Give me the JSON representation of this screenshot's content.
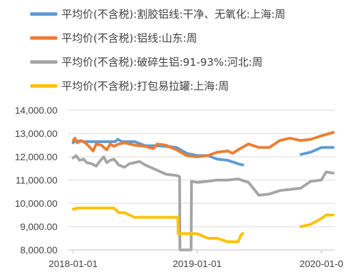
{
  "chart_data": {
    "type": "line",
    "series": [
      {
        "name": "平均价(不含税):割胶铝线:干净、无氧化:上海:周",
        "color": "#5B9BD5",
        "points": [
          [
            "2018-01-01",
            12600
          ],
          [
            "2018-01-08",
            12700
          ],
          [
            "2018-02-01",
            12650
          ],
          [
            "2018-04-01",
            12650
          ],
          [
            "2018-05-05",
            12650
          ],
          [
            "2018-05-12",
            12750
          ],
          [
            "2018-05-25",
            12650
          ],
          [
            "2018-07-01",
            12650
          ],
          [
            "2018-08-01",
            12480
          ],
          [
            "2018-09-01",
            12480
          ],
          [
            "2018-10-01",
            12450
          ],
          [
            "2018-11-01",
            12400
          ],
          [
            "2018-12-01",
            12150
          ],
          [
            "2019-01-01",
            12050
          ],
          [
            "2019-02-01",
            12050
          ],
          [
            "2019-03-01",
            11900
          ],
          [
            "2019-04-01",
            11850
          ],
          [
            "2019-05-01",
            11700
          ],
          [
            "2019-05-15",
            11650
          ],
          [
            "2019-05-16",
            null
          ],
          [
            "2019-11-01",
            null
          ],
          [
            "2019-11-02",
            12100
          ],
          [
            "2019-12-01",
            12200
          ],
          [
            "2020-01-01",
            12400
          ],
          [
            "2020-02-05",
            12400
          ]
        ]
      },
      {
        "name": "平均价(不含税):铝线:山东:周",
        "color": "#ED7D31",
        "points": [
          [
            "2018-01-01",
            12700
          ],
          [
            "2018-01-06",
            12800
          ],
          [
            "2018-01-13",
            12600
          ],
          [
            "2018-01-25",
            12700
          ],
          [
            "2018-02-10",
            12550
          ],
          [
            "2018-03-01",
            12250
          ],
          [
            "2018-03-10",
            12550
          ],
          [
            "2018-03-25",
            12500
          ],
          [
            "2018-04-10",
            12300
          ],
          [
            "2018-04-20",
            12550
          ],
          [
            "2018-05-01",
            12450
          ],
          [
            "2018-05-15",
            12550
          ],
          [
            "2018-06-01",
            12600
          ],
          [
            "2018-07-01",
            12500
          ],
          [
            "2018-08-01",
            12450
          ],
          [
            "2018-08-25",
            12350
          ],
          [
            "2018-09-05",
            12550
          ],
          [
            "2018-10-01",
            12500
          ],
          [
            "2018-11-01",
            12300
          ],
          [
            "2018-12-01",
            12050
          ],
          [
            "2019-01-01",
            12000
          ],
          [
            "2019-02-01",
            12050
          ],
          [
            "2019-03-01",
            12200
          ],
          [
            "2019-04-01",
            12250
          ],
          [
            "2019-04-15",
            12150
          ],
          [
            "2019-05-01",
            12300
          ],
          [
            "2019-06-01",
            12550
          ],
          [
            "2019-07-01",
            12400
          ],
          [
            "2019-08-01",
            12400
          ],
          [
            "2019-09-01",
            12700
          ],
          [
            "2019-10-01",
            12800
          ],
          [
            "2019-11-01",
            12700
          ],
          [
            "2019-12-01",
            12750
          ],
          [
            "2020-01-01",
            12900
          ],
          [
            "2020-02-05",
            13050
          ]
        ]
      },
      {
        "name": "平均价(不含税):破碎生铝:91-93%:河北:周",
        "color": "#A5A5A5",
        "points": [
          [
            "2018-01-01",
            11950
          ],
          [
            "2018-01-10",
            12050
          ],
          [
            "2018-01-20",
            11850
          ],
          [
            "2018-02-01",
            11900
          ],
          [
            "2018-02-10",
            11750
          ],
          [
            "2018-02-25",
            11700
          ],
          [
            "2018-03-10",
            11600
          ],
          [
            "2018-03-20",
            11800
          ],
          [
            "2018-04-01",
            12000
          ],
          [
            "2018-04-10",
            11750
          ],
          [
            "2018-04-20",
            11850
          ],
          [
            "2018-05-01",
            11900
          ],
          [
            "2018-05-15",
            11650
          ],
          [
            "2018-06-01",
            11550
          ],
          [
            "2018-06-15",
            11700
          ],
          [
            "2018-07-01",
            11750
          ],
          [
            "2018-07-15",
            11800
          ],
          [
            "2018-08-01",
            11650
          ],
          [
            "2018-09-01",
            11450
          ],
          [
            "2018-10-01",
            11250
          ],
          [
            "2018-11-01",
            11200
          ],
          [
            "2018-11-10",
            11150
          ],
          [
            "2018-11-11",
            7500
          ],
          [
            "2018-12-14",
            7500
          ],
          [
            "2018-12-15",
            10950
          ],
          [
            "2019-01-01",
            10900
          ],
          [
            "2019-02-01",
            10950
          ],
          [
            "2019-03-01",
            11000
          ],
          [
            "2019-04-01",
            11000
          ],
          [
            "2019-05-01",
            11050
          ],
          [
            "2019-06-01",
            10900
          ],
          [
            "2019-07-01",
            10350
          ],
          [
            "2019-08-01",
            10400
          ],
          [
            "2019-09-01",
            10550
          ],
          [
            "2019-10-01",
            10600
          ],
          [
            "2019-11-01",
            10650
          ],
          [
            "2019-12-01",
            10950
          ],
          [
            "2020-01-01",
            11000
          ],
          [
            "2020-01-15",
            11350
          ],
          [
            "2020-02-05",
            11300
          ]
        ]
      },
      {
        "name": "平均价(不含税):打包易拉罐:上海:周",
        "color": "#FFC000",
        "points": [
          [
            "2018-01-01",
            9750
          ],
          [
            "2018-01-15",
            9800
          ],
          [
            "2018-05-01",
            9800
          ],
          [
            "2018-05-15",
            9600
          ],
          [
            "2018-06-01",
            9600
          ],
          [
            "2018-07-01",
            9400
          ],
          [
            "2018-08-01",
            9400
          ],
          [
            "2018-11-05",
            9400
          ],
          [
            "2018-11-06",
            8700
          ],
          [
            "2019-01-01",
            8700
          ],
          [
            "2019-02-01",
            8500
          ],
          [
            "2019-03-01",
            8500
          ],
          [
            "2019-04-01",
            8350
          ],
          [
            "2019-05-01",
            8350
          ],
          [
            "2019-05-10",
            8650
          ],
          [
            "2019-05-15",
            8700
          ],
          [
            "2019-05-16",
            null
          ],
          [
            "2019-11-01",
            null
          ],
          [
            "2019-11-02",
            9000
          ],
          [
            "2019-12-01",
            9100
          ],
          [
            "2020-01-01",
            9350
          ],
          [
            "2020-01-15",
            9500
          ],
          [
            "2020-02-05",
            9500
          ]
        ]
      }
    ],
    "y_ticks": [
      "14,000.00",
      "13,000.00",
      "12,000.00",
      "11,000.00",
      "10,000.00",
      "9,000.00",
      "8,000.00"
    ],
    "x_ticks": [
      {
        "label": "2018-01-01",
        "date": "2018-01-01"
      },
      {
        "label": "2019-01-01",
        "date": "2019-01-01"
      },
      {
        "label": "2020-01-0",
        "date": "2020-01-01"
      }
    ],
    "ylim": [
      8000,
      14000
    ],
    "xlim": [
      "2017-12-18",
      "2020-02-10"
    ],
    "grid": "horizontal",
    "legend_position": "top"
  }
}
